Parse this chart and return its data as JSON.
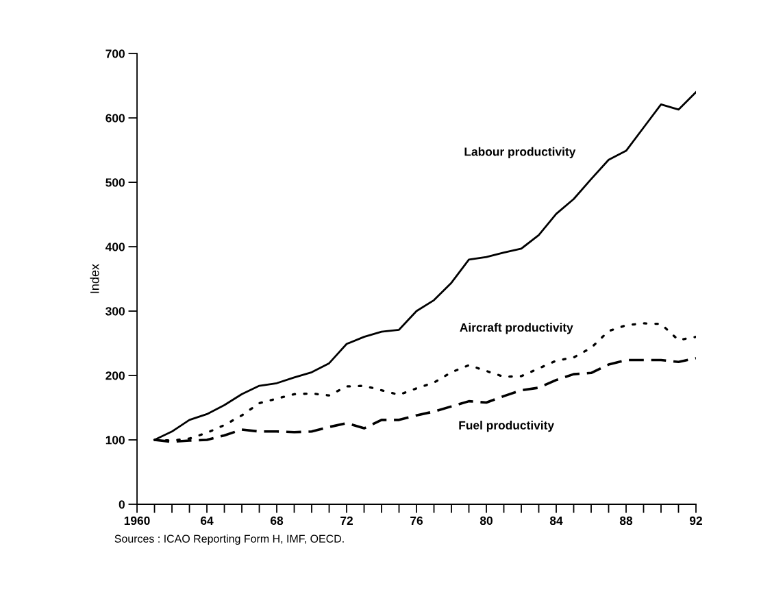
{
  "chart_data": {
    "type": "line",
    "ylabel": "Index",
    "x": [
      1961,
      1962,
      1963,
      1964,
      1965,
      1966,
      1967,
      1968,
      1969,
      1970,
      1971,
      1972,
      1973,
      1974,
      1975,
      1976,
      1977,
      1978,
      1979,
      1980,
      1981,
      1982,
      1983,
      1984,
      1985,
      1986,
      1987,
      1988,
      1989,
      1990,
      1991,
      1992
    ],
    "series": [
      {
        "name": "Labour productivity",
        "color": "#000000",
        "line_style": "solid",
        "values": [
          100,
          113,
          131,
          140,
          154,
          171,
          184,
          188,
          197,
          205,
          219,
          249,
          260,
          268,
          271,
          300,
          317,
          344,
          380,
          384,
          391,
          397,
          418,
          451,
          474,
          505,
          535,
          549,
          585,
          621,
          613,
          640
        ]
      },
      {
        "name": "Aircraft productivity",
        "color": "#000000",
        "line_style": "dotted",
        "values": [
          100,
          99,
          102,
          111,
          123,
          138,
          157,
          164,
          171,
          172,
          169,
          183,
          184,
          177,
          170,
          180,
          189,
          205,
          216,
          207,
          198,
          199,
          211,
          223,
          228,
          243,
          269,
          278,
          281,
          280,
          255,
          260
        ]
      },
      {
        "name": "Fuel productivity",
        "color": "#000000",
        "line_style": "dashed",
        "values": [
          100,
          97,
          99,
          100,
          107,
          116,
          113,
          113,
          112,
          113,
          120,
          126,
          118,
          131,
          131,
          138,
          144,
          152,
          160,
          158,
          168,
          177,
          181,
          193,
          202,
          204,
          217,
          224,
          224,
          224,
          221,
          227
        ]
      }
    ],
    "xlim": [
      1960,
      1992
    ],
    "xticks": [
      {
        "value": 1960,
        "label": "1960"
      },
      {
        "value": 1961,
        "label": null
      },
      {
        "value": 1962,
        "label": null
      },
      {
        "value": 1963,
        "label": null
      },
      {
        "value": 1964,
        "label": "64"
      },
      {
        "value": 1965,
        "label": null
      },
      {
        "value": 1966,
        "label": null
      },
      {
        "value": 1967,
        "label": null
      },
      {
        "value": 1968,
        "label": "68"
      },
      {
        "value": 1969,
        "label": null
      },
      {
        "value": 1970,
        "label": null
      },
      {
        "value": 1971,
        "label": null
      },
      {
        "value": 1972,
        "label": "72"
      },
      {
        "value": 1973,
        "label": null
      },
      {
        "value": 1974,
        "label": null
      },
      {
        "value": 1975,
        "label": null
      },
      {
        "value": 1976,
        "label": "76"
      },
      {
        "value": 1977,
        "label": null
      },
      {
        "value": 1978,
        "label": null
      },
      {
        "value": 1979,
        "label": null
      },
      {
        "value": 1980,
        "label": "80"
      },
      {
        "value": 1981,
        "label": null
      },
      {
        "value": 1982,
        "label": null
      },
      {
        "value": 1983,
        "label": null
      },
      {
        "value": 1984,
        "label": "84"
      },
      {
        "value": 1985,
        "label": null
      },
      {
        "value": 1986,
        "label": null
      },
      {
        "value": 1987,
        "label": null
      },
      {
        "value": 1988,
        "label": "88"
      },
      {
        "value": 1989,
        "label": null
      },
      {
        "value": 1990,
        "label": null
      },
      {
        "value": 1991,
        "label": null
      },
      {
        "value": 1992,
        "label": "92"
      }
    ],
    "ylim": [
      0,
      700
    ],
    "yticks": [
      0,
      100,
      200,
      300,
      400,
      500,
      600,
      700
    ],
    "grid": false,
    "legend": false,
    "annotations": [
      "Sources : ICAO Reporting Form H, IMF, OECD."
    ]
  }
}
